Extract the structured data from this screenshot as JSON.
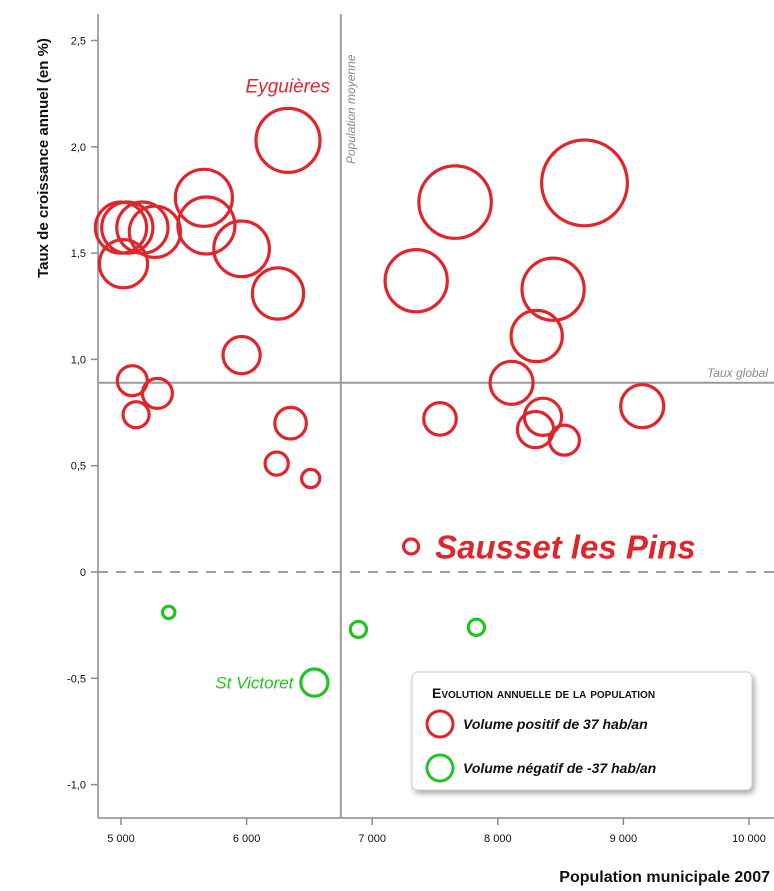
{
  "chart_data": {
    "type": "scatter",
    "xlabel": "Population municipale 2007",
    "ylabel": "Taux de croissance annuel (en %)",
    "xlim": [
      4800,
      10000
    ],
    "ylim": [
      -1.1,
      2.55
    ],
    "xticks": [
      5000,
      6000,
      7000,
      8000,
      9000,
      10000
    ],
    "xtick_labels": [
      "5 000",
      "6 000",
      "7 000",
      "8 000",
      "9 000",
      "10 000"
    ],
    "yticks": [
      2.5,
      2.0,
      1.5,
      1.0,
      0.5,
      0,
      -0.5,
      -1.0
    ],
    "ytick_labels": [
      "2,5",
      "2,0",
      "1,5",
      "1,0",
      "0,5",
      "0",
      "-0,5",
      "-1,0"
    ],
    "reference_lines": {
      "vertical": {
        "x": 6750,
        "label": "Population moyenne"
      },
      "horizontal": {
        "y": 0.89,
        "label": "Taux global"
      },
      "zero": {
        "y": 0
      }
    },
    "colors": {
      "positive": "#e0262d",
      "negative": "#22c422",
      "grid": "#9a9a9a",
      "zero_line": "#a0a0a0"
    },
    "series": [
      {
        "name": "Volume positif de 37 hab/an",
        "color": "#e0262d",
        "points": [
          {
            "x": 6330,
            "y": 2.03,
            "volume": 128
          },
          {
            "x": 5660,
            "y": 1.76,
            "volume": 100
          },
          {
            "x": 5680,
            "y": 1.63,
            "volume": 100
          },
          {
            "x": 5000,
            "y": 1.62,
            "volume": 80
          },
          {
            "x": 5050,
            "y": 1.62,
            "volume": 80
          },
          {
            "x": 5170,
            "y": 1.62,
            "volume": 80
          },
          {
            "x": 5270,
            "y": 1.6,
            "volume": 80
          },
          {
            "x": 5020,
            "y": 1.45,
            "volume": 70
          },
          {
            "x": 5960,
            "y": 1.52,
            "volume": 95
          },
          {
            "x": 6250,
            "y": 1.31,
            "volume": 80
          },
          {
            "x": 5960,
            "y": 1.02,
            "volume": 40
          },
          {
            "x": 5090,
            "y": 0.9,
            "volume": 25
          },
          {
            "x": 5290,
            "y": 0.84,
            "volume": 25
          },
          {
            "x": 5120,
            "y": 0.74,
            "volume": 18
          },
          {
            "x": 6350,
            "y": 0.7,
            "volume": 28
          },
          {
            "x": 6240,
            "y": 0.51,
            "volume": 14
          },
          {
            "x": 6510,
            "y": 0.44,
            "volume": 8
          },
          {
            "x": 7660,
            "y": 1.74,
            "volume": 165
          },
          {
            "x": 8690,
            "y": 1.83,
            "volume": 235
          },
          {
            "x": 7350,
            "y": 1.37,
            "volume": 120
          },
          {
            "x": 8440,
            "y": 1.33,
            "volume": 120
          },
          {
            "x": 8310,
            "y": 1.11,
            "volume": 80
          },
          {
            "x": 8110,
            "y": 0.89,
            "volume": 55
          },
          {
            "x": 9150,
            "y": 0.78,
            "volume": 55
          },
          {
            "x": 8360,
            "y": 0.73,
            "volume": 40
          },
          {
            "x": 7540,
            "y": 0.72,
            "volume": 30
          },
          {
            "x": 8300,
            "y": 0.67,
            "volume": 38
          },
          {
            "x": 8530,
            "y": 0.62,
            "volume": 25
          },
          {
            "x": 7310,
            "y": 0.12,
            "volume": 5
          }
        ]
      },
      {
        "name": "Volume négatif de -37 hab/an",
        "color": "#22c422",
        "points": [
          {
            "x": 5380,
            "y": -0.19,
            "volume": 3
          },
          {
            "x": 6890,
            "y": -0.27,
            "volume": 6
          },
          {
            "x": 7830,
            "y": -0.26,
            "volume": 6
          },
          {
            "x": 6540,
            "y": -0.52,
            "volume": 20
          }
        ]
      }
    ],
    "annotations": [
      {
        "text": "Eyguières",
        "x": 6330,
        "y": 2.03,
        "color": "#e0262d"
      },
      {
        "text": "Sausset les Pins",
        "x": 7310,
        "y": 0.12,
        "color": "#e0262d"
      },
      {
        "text": "St Victoret",
        "x": 6540,
        "y": -0.52,
        "color": "#22c422"
      }
    ],
    "legend": {
      "title": "Evolution annuelle de la population",
      "position": "bottom-right",
      "entries": [
        {
          "label": "Volume positif de 37 hab/an",
          "color": "#e0262d"
        },
        {
          "label": "Volume négatif de -37 hab/an",
          "color": "#22c422"
        }
      ]
    }
  }
}
